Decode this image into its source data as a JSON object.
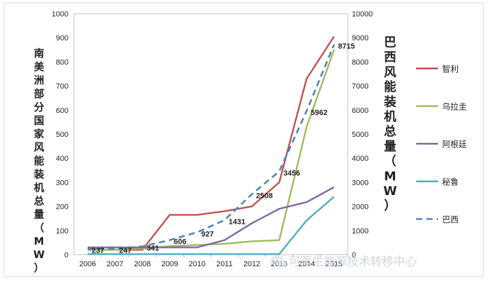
{
  "chart_data": {
    "type": "line",
    "categories": [
      "2006",
      "2007",
      "2008",
      "2009",
      "2010",
      "2011",
      "2012",
      "2013",
      "2014",
      "2015"
    ],
    "y_left": {
      "label": "南美洲部分国家风能装机总量（MW）",
      "lim": [
        0,
        1000
      ],
      "ticks": [
        0,
        100,
        200,
        300,
        400,
        500,
        600,
        700,
        800,
        900,
        1000
      ]
    },
    "y_right": {
      "label": "巴西风能装机总量（MW）",
      "lim": [
        0,
        10000
      ],
      "ticks": [
        0,
        1000,
        2000,
        3000,
        4000,
        5000,
        6000,
        7000,
        8000,
        9000,
        10000
      ]
    },
    "series": [
      {
        "name": "智利",
        "axis": "left",
        "color": "#c0504d",
        "dash": false,
        "values": [
          20,
          20,
          20,
          165,
          165,
          180,
          200,
          300,
          730,
          905
        ]
      },
      {
        "name": "乌拉圭",
        "axis": "left",
        "color": "#9bbb59",
        "dash": false,
        "values": [
          20,
          20,
          25,
          35,
          40,
          45,
          55,
          60,
          530,
          850
        ]
      },
      {
        "name": "阿根廷",
        "axis": "left",
        "color": "#8064a2",
        "dash": false,
        "values": [
          30,
          30,
          30,
          30,
          30,
          60,
          130,
          190,
          218,
          280
        ]
      },
      {
        "name": "秘鲁",
        "axis": "left",
        "color": "#4bacc6",
        "dash": false,
        "values": [
          2,
          2,
          2,
          2,
          2,
          2,
          2,
          2,
          142,
          240
        ]
      },
      {
        "name": "巴西",
        "axis": "right",
        "color": "#4f81bd",
        "dash": true,
        "values": [
          237,
          247,
          341,
          606,
          927,
          1431,
          2508,
          3456,
          5962,
          8715
        ],
        "data_labels": [
          "237",
          "247",
          "341",
          "606",
          "927",
          "1431",
          "2508",
          "3456",
          "5962",
          "8715"
        ]
      }
    ],
    "legend_position": "right",
    "grid": false
  },
  "watermark": {
    "text": "可再生能源技术转移中心"
  }
}
